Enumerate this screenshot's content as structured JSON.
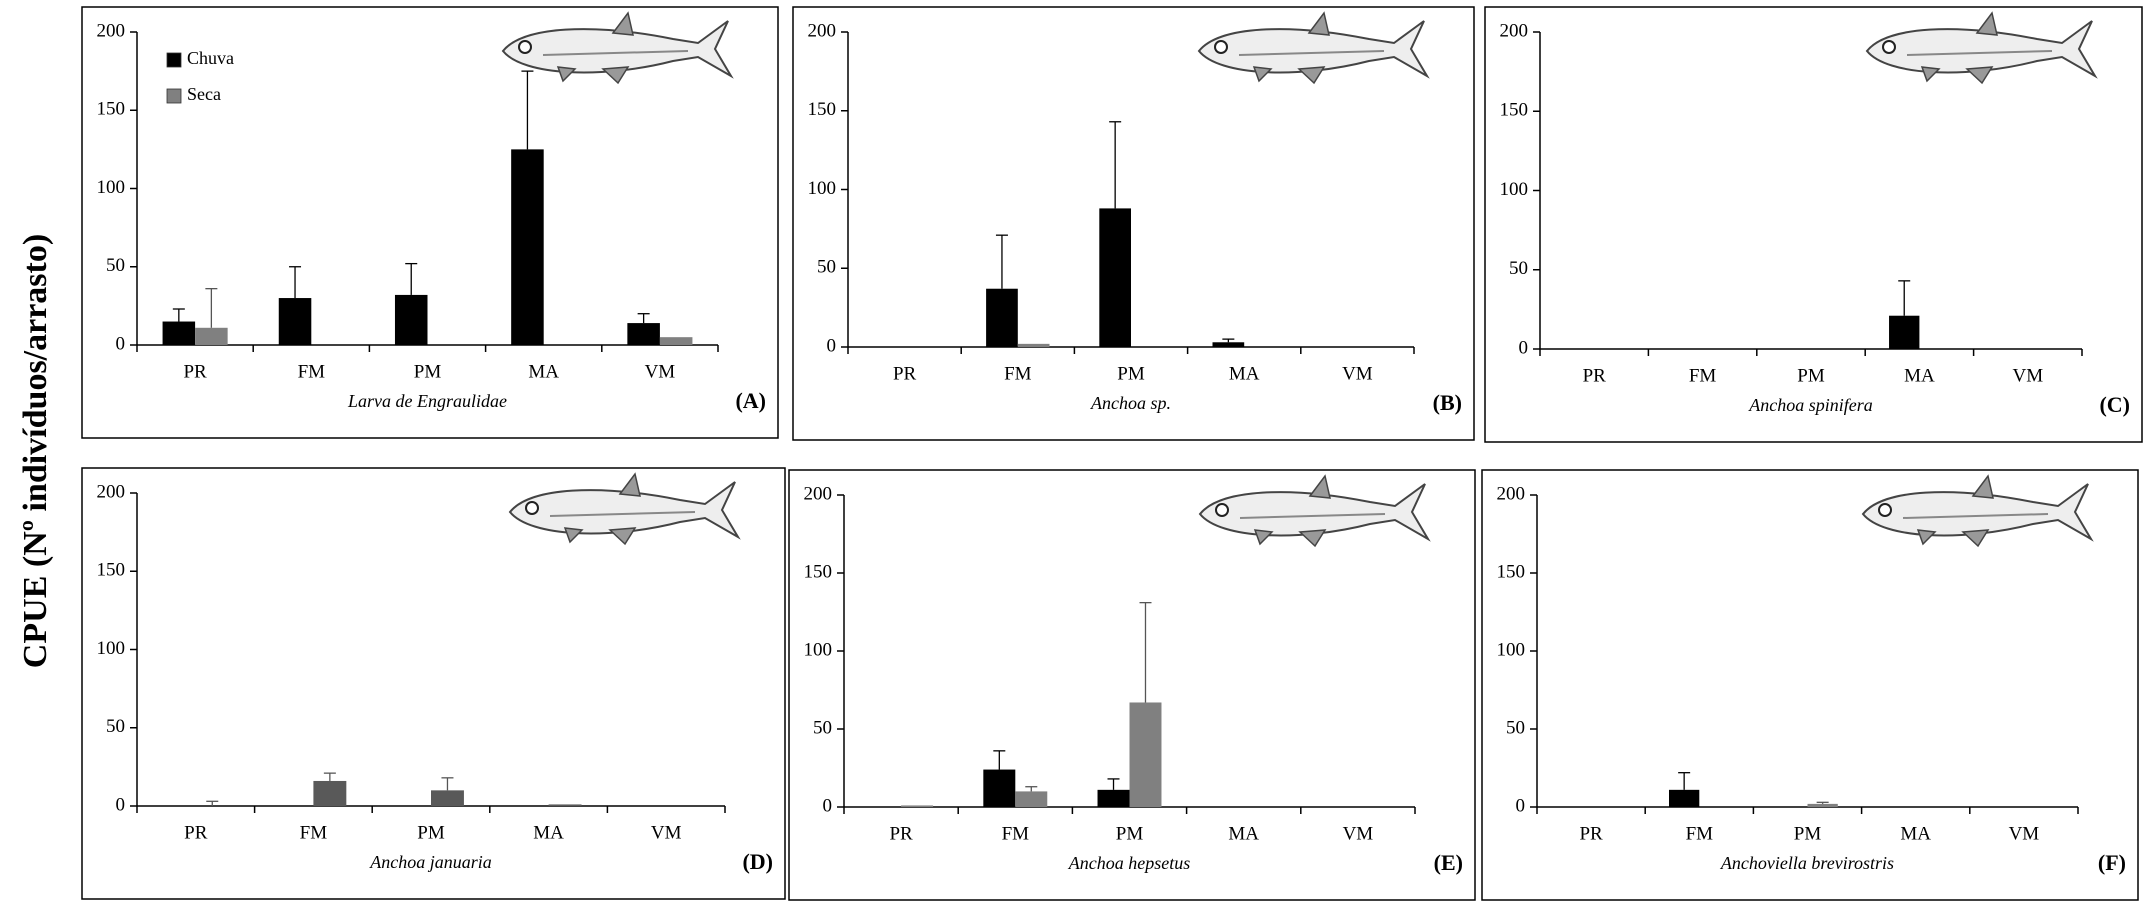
{
  "ylabel": "CPUE (Nº indivíduos/arrasto)",
  "chart_data": [
    {
      "type": "bar",
      "title": "Larva de Engraulidae",
      "letter": "(A)",
      "categories": [
        "PR",
        "FM",
        "PM",
        "MA",
        "VM"
      ],
      "series": [
        {
          "name": "Chuva",
          "color": "#000000",
          "values": [
            15,
            30,
            32,
            125,
            14
          ],
          "errors": [
            8,
            20,
            20,
            50,
            6
          ]
        },
        {
          "name": "Seca",
          "color": "#808080",
          "values": [
            11,
            0,
            0,
            0,
            5
          ],
          "errors": [
            25,
            0,
            0,
            0,
            0
          ]
        }
      ],
      "ylim": [
        0,
        200
      ],
      "yticks": [
        0,
        50,
        100,
        150,
        200
      ],
      "legend": "upper left"
    },
    {
      "type": "bar",
      "title": "Anchoa sp.",
      "letter": "(B)",
      "categories": [
        "PR",
        "FM",
        "PM",
        "MA",
        "VM"
      ],
      "series": [
        {
          "color": "#000000",
          "values": [
            0,
            37,
            88,
            3,
            0
          ],
          "errors": [
            0,
            34,
            55,
            2,
            0
          ]
        },
        {
          "color": "#808080",
          "values": [
            0,
            2,
            0,
            0,
            0
          ],
          "errors": [
            0,
            0,
            0,
            0,
            0
          ]
        }
      ],
      "ylim": [
        0,
        200
      ],
      "yticks": [
        0,
        50,
        100,
        150,
        200
      ]
    },
    {
      "type": "bar",
      "title": "Anchoa spinifera",
      "letter": "(C)",
      "categories": [
        "PR",
        "FM",
        "PM",
        "MA",
        "VM"
      ],
      "series": [
        {
          "color": "#000000",
          "values": [
            0,
            0,
            0,
            21,
            0
          ],
          "errors": [
            0,
            0,
            0,
            22,
            0
          ]
        },
        {
          "color": "#808080",
          "values": [
            0,
            0,
            0,
            0,
            0
          ],
          "errors": [
            0,
            0,
            0,
            0,
            0
          ]
        }
      ],
      "ylim": [
        0,
        200
      ],
      "yticks": [
        0,
        50,
        100,
        150,
        200
      ]
    },
    {
      "type": "bar",
      "title": "Anchoa januaria",
      "letter": "(D)",
      "categories": [
        "PR",
        "FM",
        "PM",
        "MA",
        "VM"
      ],
      "series": [
        {
          "color": "#000000",
          "values": [
            0,
            0,
            0,
            0,
            0
          ],
          "errors": [
            0,
            0,
            0,
            0,
            0
          ]
        },
        {
          "color": "#595959",
          "values": [
            0,
            16,
            10,
            1,
            0
          ],
          "errors": [
            3,
            5,
            8,
            0,
            0
          ]
        }
      ],
      "ylim": [
        0,
        200
      ],
      "yticks": [
        0,
        50,
        100,
        150,
        200
      ]
    },
    {
      "type": "bar",
      "title": "Anchoa hepsetus",
      "letter": "(E)",
      "categories": [
        "PR",
        "FM",
        "PM",
        "MA",
        "VM"
      ],
      "series": [
        {
          "color": "#000000",
          "values": [
            0,
            24,
            11,
            0,
            0
          ],
          "errors": [
            0,
            12,
            7,
            0,
            0
          ]
        },
        {
          "color": "#808080",
          "values": [
            1,
            10,
            67,
            0,
            0
          ],
          "errors": [
            0,
            3,
            64,
            0,
            0
          ]
        }
      ],
      "ylim": [
        0,
        200
      ],
      "yticks": [
        0,
        50,
        100,
        150,
        200
      ]
    },
    {
      "type": "bar",
      "title": "Anchoviella brevirostris",
      "letter": "(F)",
      "categories": [
        "PR",
        "FM",
        "PM",
        "MA",
        "VM"
      ],
      "series": [
        {
          "color": "#000000",
          "values": [
            0,
            11,
            0,
            0,
            0
          ],
          "errors": [
            0,
            11,
            0,
            0,
            0
          ]
        },
        {
          "color": "#808080",
          "values": [
            0,
            0,
            2,
            0,
            0
          ],
          "errors": [
            0,
            0,
            1,
            0,
            0
          ]
        }
      ],
      "ylim": [
        0,
        200
      ],
      "yticks": [
        0,
        50,
        100,
        150,
        200
      ]
    }
  ]
}
